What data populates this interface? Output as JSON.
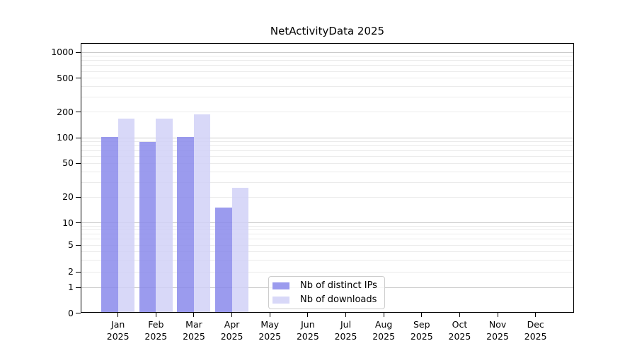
{
  "chart_data": {
    "type": "bar",
    "title": "NetActivityData 2025",
    "scale": "symlog",
    "grid": true,
    "legend_position": "lower-center",
    "yticks": [
      0,
      1,
      2,
      5,
      10,
      20,
      50,
      100,
      200,
      500,
      1000
    ],
    "ylim": [
      0,
      1400
    ],
    "x_categories": [
      {
        "month": "Jan",
        "year": "2025"
      },
      {
        "month": "Feb",
        "year": "2025"
      },
      {
        "month": "Mar",
        "year": "2025"
      },
      {
        "month": "Apr",
        "year": "2025"
      },
      {
        "month": "May",
        "year": "2025"
      },
      {
        "month": "Jun",
        "year": "2025"
      },
      {
        "month": "Jul",
        "year": "2025"
      },
      {
        "month": "Aug",
        "year": "2025"
      },
      {
        "month": "Sep",
        "year": "2025"
      },
      {
        "month": "Oct",
        "year": "2025"
      },
      {
        "month": "Nov",
        "year": "2025"
      },
      {
        "month": "Dec",
        "year": "2025"
      }
    ],
    "series": [
      {
        "name": "Nb of distinct IPs",
        "color": "#9b9bee",
        "values": [
          102,
          90,
          102,
          15,
          0,
          0,
          0,
          0,
          0,
          0,
          0,
          0
        ]
      },
      {
        "name": "Nb of downloads",
        "color": "#d8d8f8",
        "values": [
          168,
          166,
          186,
          26,
          0,
          0,
          0,
          0,
          0,
          0,
          0,
          0
        ]
      }
    ]
  }
}
